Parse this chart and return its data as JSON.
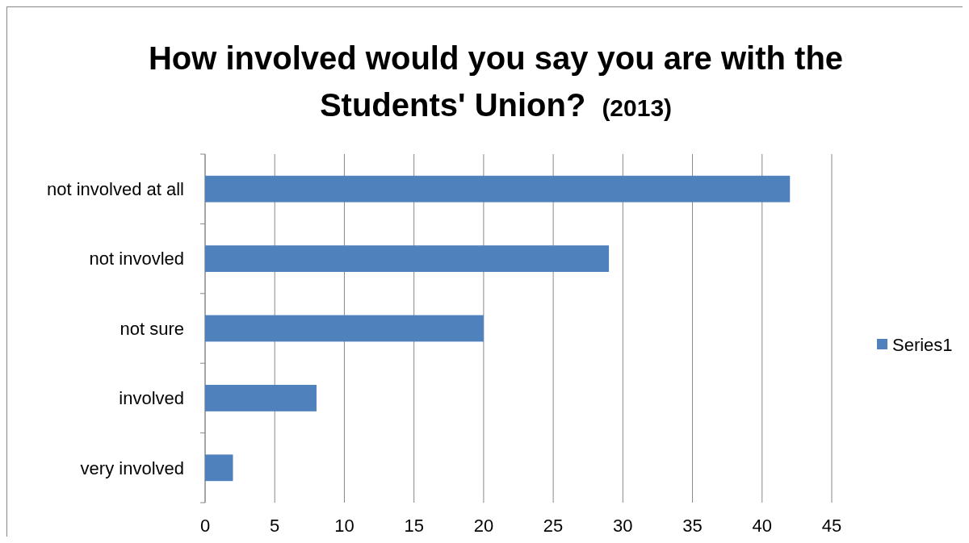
{
  "chart_data": {
    "type": "bar",
    "orientation": "horizontal",
    "title": "How involved would you say you are with the Students' Union?",
    "subtitle": "(2013)",
    "categories": [
      "not involved at all",
      "not invovled",
      "not sure",
      "involved",
      "very involved"
    ],
    "series": [
      {
        "name": "Series1",
        "color": "#4f81bd",
        "values": [
          42,
          29,
          20,
          8,
          2
        ]
      }
    ],
    "xlim": [
      0,
      45
    ],
    "xticks": [
      0,
      5,
      10,
      15,
      20,
      25,
      30,
      35,
      40,
      45
    ],
    "grid": "x",
    "legend": "right"
  }
}
